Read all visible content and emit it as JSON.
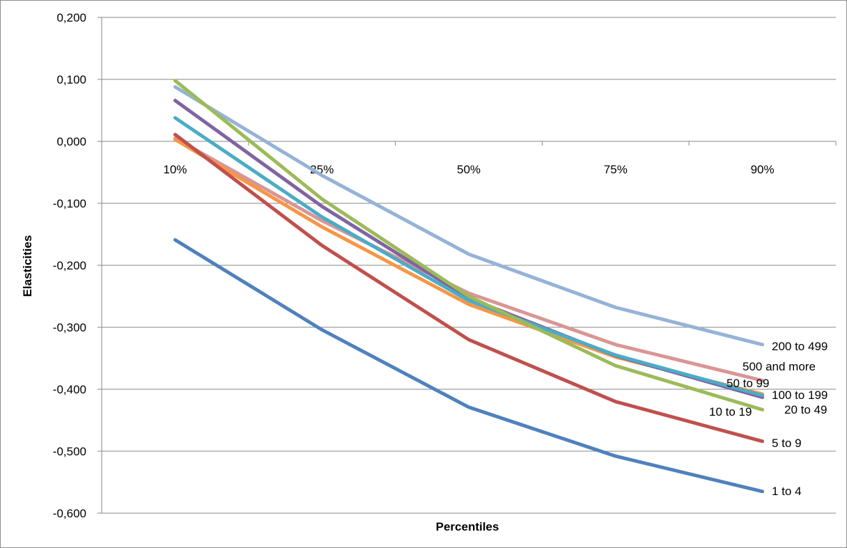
{
  "chart_data": {
    "type": "line",
    "xlabel": "Percentiles",
    "ylabel": "Elasticities",
    "categories": [
      "10%",
      "25%",
      "50%",
      "75%",
      "90%"
    ],
    "ylim": [
      -0.6,
      0.2
    ],
    "yticks": [
      0.2,
      0.1,
      0.0,
      -0.1,
      -0.2,
      -0.3,
      -0.4,
      -0.5,
      -0.6
    ],
    "ytick_labels": [
      "0,200",
      "0,100",
      "0,000",
      "-0,100",
      "-0,200",
      "-0,300",
      "-0,400",
      "-0,500",
      "-0,600"
    ],
    "grid": "horizontal",
    "series": [
      {
        "name": "200 to 499",
        "color": "#95B3D7",
        "values": [
          0.088,
          -0.055,
          -0.182,
          -0.268,
          -0.328
        ]
      },
      {
        "name": "500 and more",
        "color": "#D99694",
        "values": [
          0.005,
          -0.128,
          -0.245,
          -0.328,
          -0.386
        ]
      },
      {
        "name": "50 to 99",
        "color": "#F79646",
        "values": [
          0.003,
          -0.138,
          -0.263,
          -0.348,
          -0.408
        ]
      },
      {
        "name": "100 to 199",
        "color": "#8064A2",
        "values": [
          0.066,
          -0.105,
          -0.253,
          -0.346,
          -0.413
        ]
      },
      {
        "name": "10 to 19",
        "color": "#4BACC6",
        "values": [
          0.038,
          -0.122,
          -0.257,
          -0.345,
          -0.41
        ]
      },
      {
        "name": "20 to 49",
        "color": "#9BBB59",
        "values": [
          0.098,
          -0.093,
          -0.25,
          -0.362,
          -0.433
        ]
      },
      {
        "name": "5 to 9",
        "color": "#C0504D",
        "values": [
          0.011,
          -0.168,
          -0.32,
          -0.42,
          -0.484
        ]
      },
      {
        "name": "1 to 4",
        "color": "#4F81BD",
        "values": [
          -0.159,
          -0.304,
          -0.429,
          -0.508,
          -0.565
        ]
      }
    ]
  }
}
